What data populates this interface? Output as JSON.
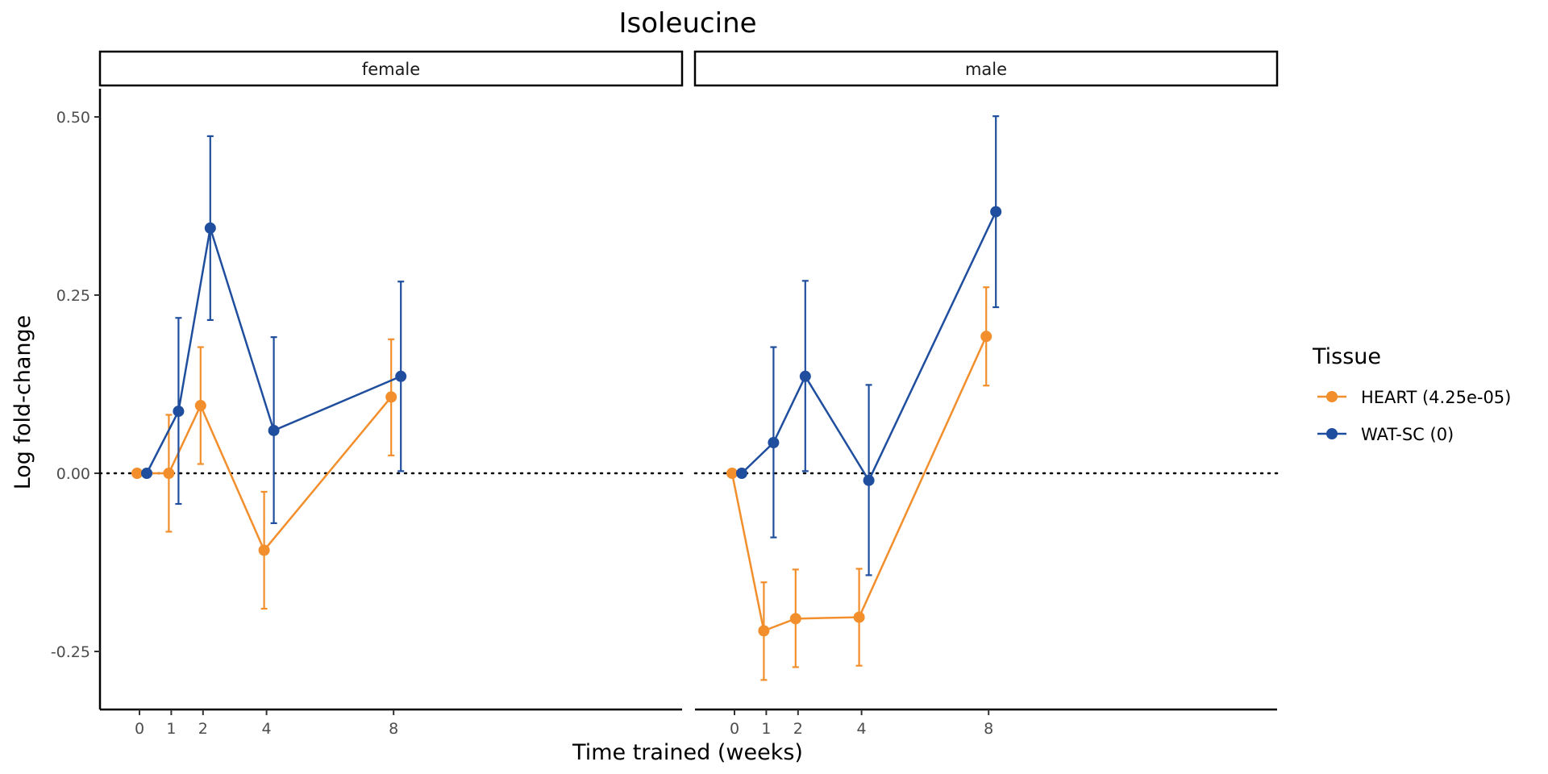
{
  "chart_data": {
    "type": "line",
    "title": "Isoleucine",
    "xlabel": "Time trained (weeks)",
    "ylabel": "Log fold-change",
    "x_ticks": [
      0,
      1,
      2,
      4,
      8
    ],
    "y_ticks": [
      -0.25,
      0.0,
      0.25,
      0.5
    ],
    "y_tick_labels": [
      "-0.25",
      "0.00",
      "0.25",
      "0.50"
    ],
    "ylim": [
      -0.33,
      0.54
    ],
    "reference_line": {
      "y": 0,
      "style": "dotted",
      "color": "#000000"
    },
    "legend": {
      "title": "Tissue",
      "placement": "right"
    },
    "grid": false,
    "panels": [
      {
        "name": "female",
        "series": [
          {
            "name": "HEART (4.25e-05)",
            "color": "#F28E2B",
            "x": [
              0,
              1,
              2,
              4,
              8
            ],
            "y": [
              0.0,
              0.0,
              0.095,
              -0.108,
              0.107
            ],
            "err_low": [
              0.0,
              -0.082,
              0.013,
              -0.19,
              0.025
            ],
            "err_high": [
              0.0,
              0.082,
              0.177,
              -0.026,
              0.188
            ]
          },
          {
            "name": "WAT-SC (0)",
            "color": "#1F4E9E",
            "x": [
              0,
              1,
              2,
              4,
              8
            ],
            "y": [
              0.0,
              0.087,
              0.344,
              0.06,
              0.136
            ],
            "err_low": [
              0.0,
              -0.043,
              0.215,
              -0.07,
              0.003
            ],
            "err_high": [
              0.0,
              0.218,
              0.473,
              0.191,
              0.269
            ]
          }
        ]
      },
      {
        "name": "male",
        "series": [
          {
            "name": "HEART (4.25e-05)",
            "color": "#F28E2B",
            "x": [
              0,
              1,
              2,
              4,
              8
            ],
            "y": [
              0.0,
              -0.221,
              -0.204,
              -0.202,
              0.192
            ],
            "err_low": [
              0.0,
              -0.29,
              -0.272,
              -0.27,
              0.123
            ],
            "err_high": [
              0.0,
              -0.153,
              -0.135,
              -0.134,
              0.261
            ]
          },
          {
            "name": "WAT-SC (0)",
            "color": "#1F4E9E",
            "x": [
              0,
              1,
              2,
              4,
              8
            ],
            "y": [
              0.0,
              0.043,
              0.136,
              -0.01,
              0.367
            ],
            "err_low": [
              0.0,
              -0.09,
              0.003,
              -0.143,
              0.233
            ],
            "err_high": [
              0.0,
              0.177,
              0.27,
              0.124,
              0.501
            ]
          }
        ]
      }
    ]
  }
}
